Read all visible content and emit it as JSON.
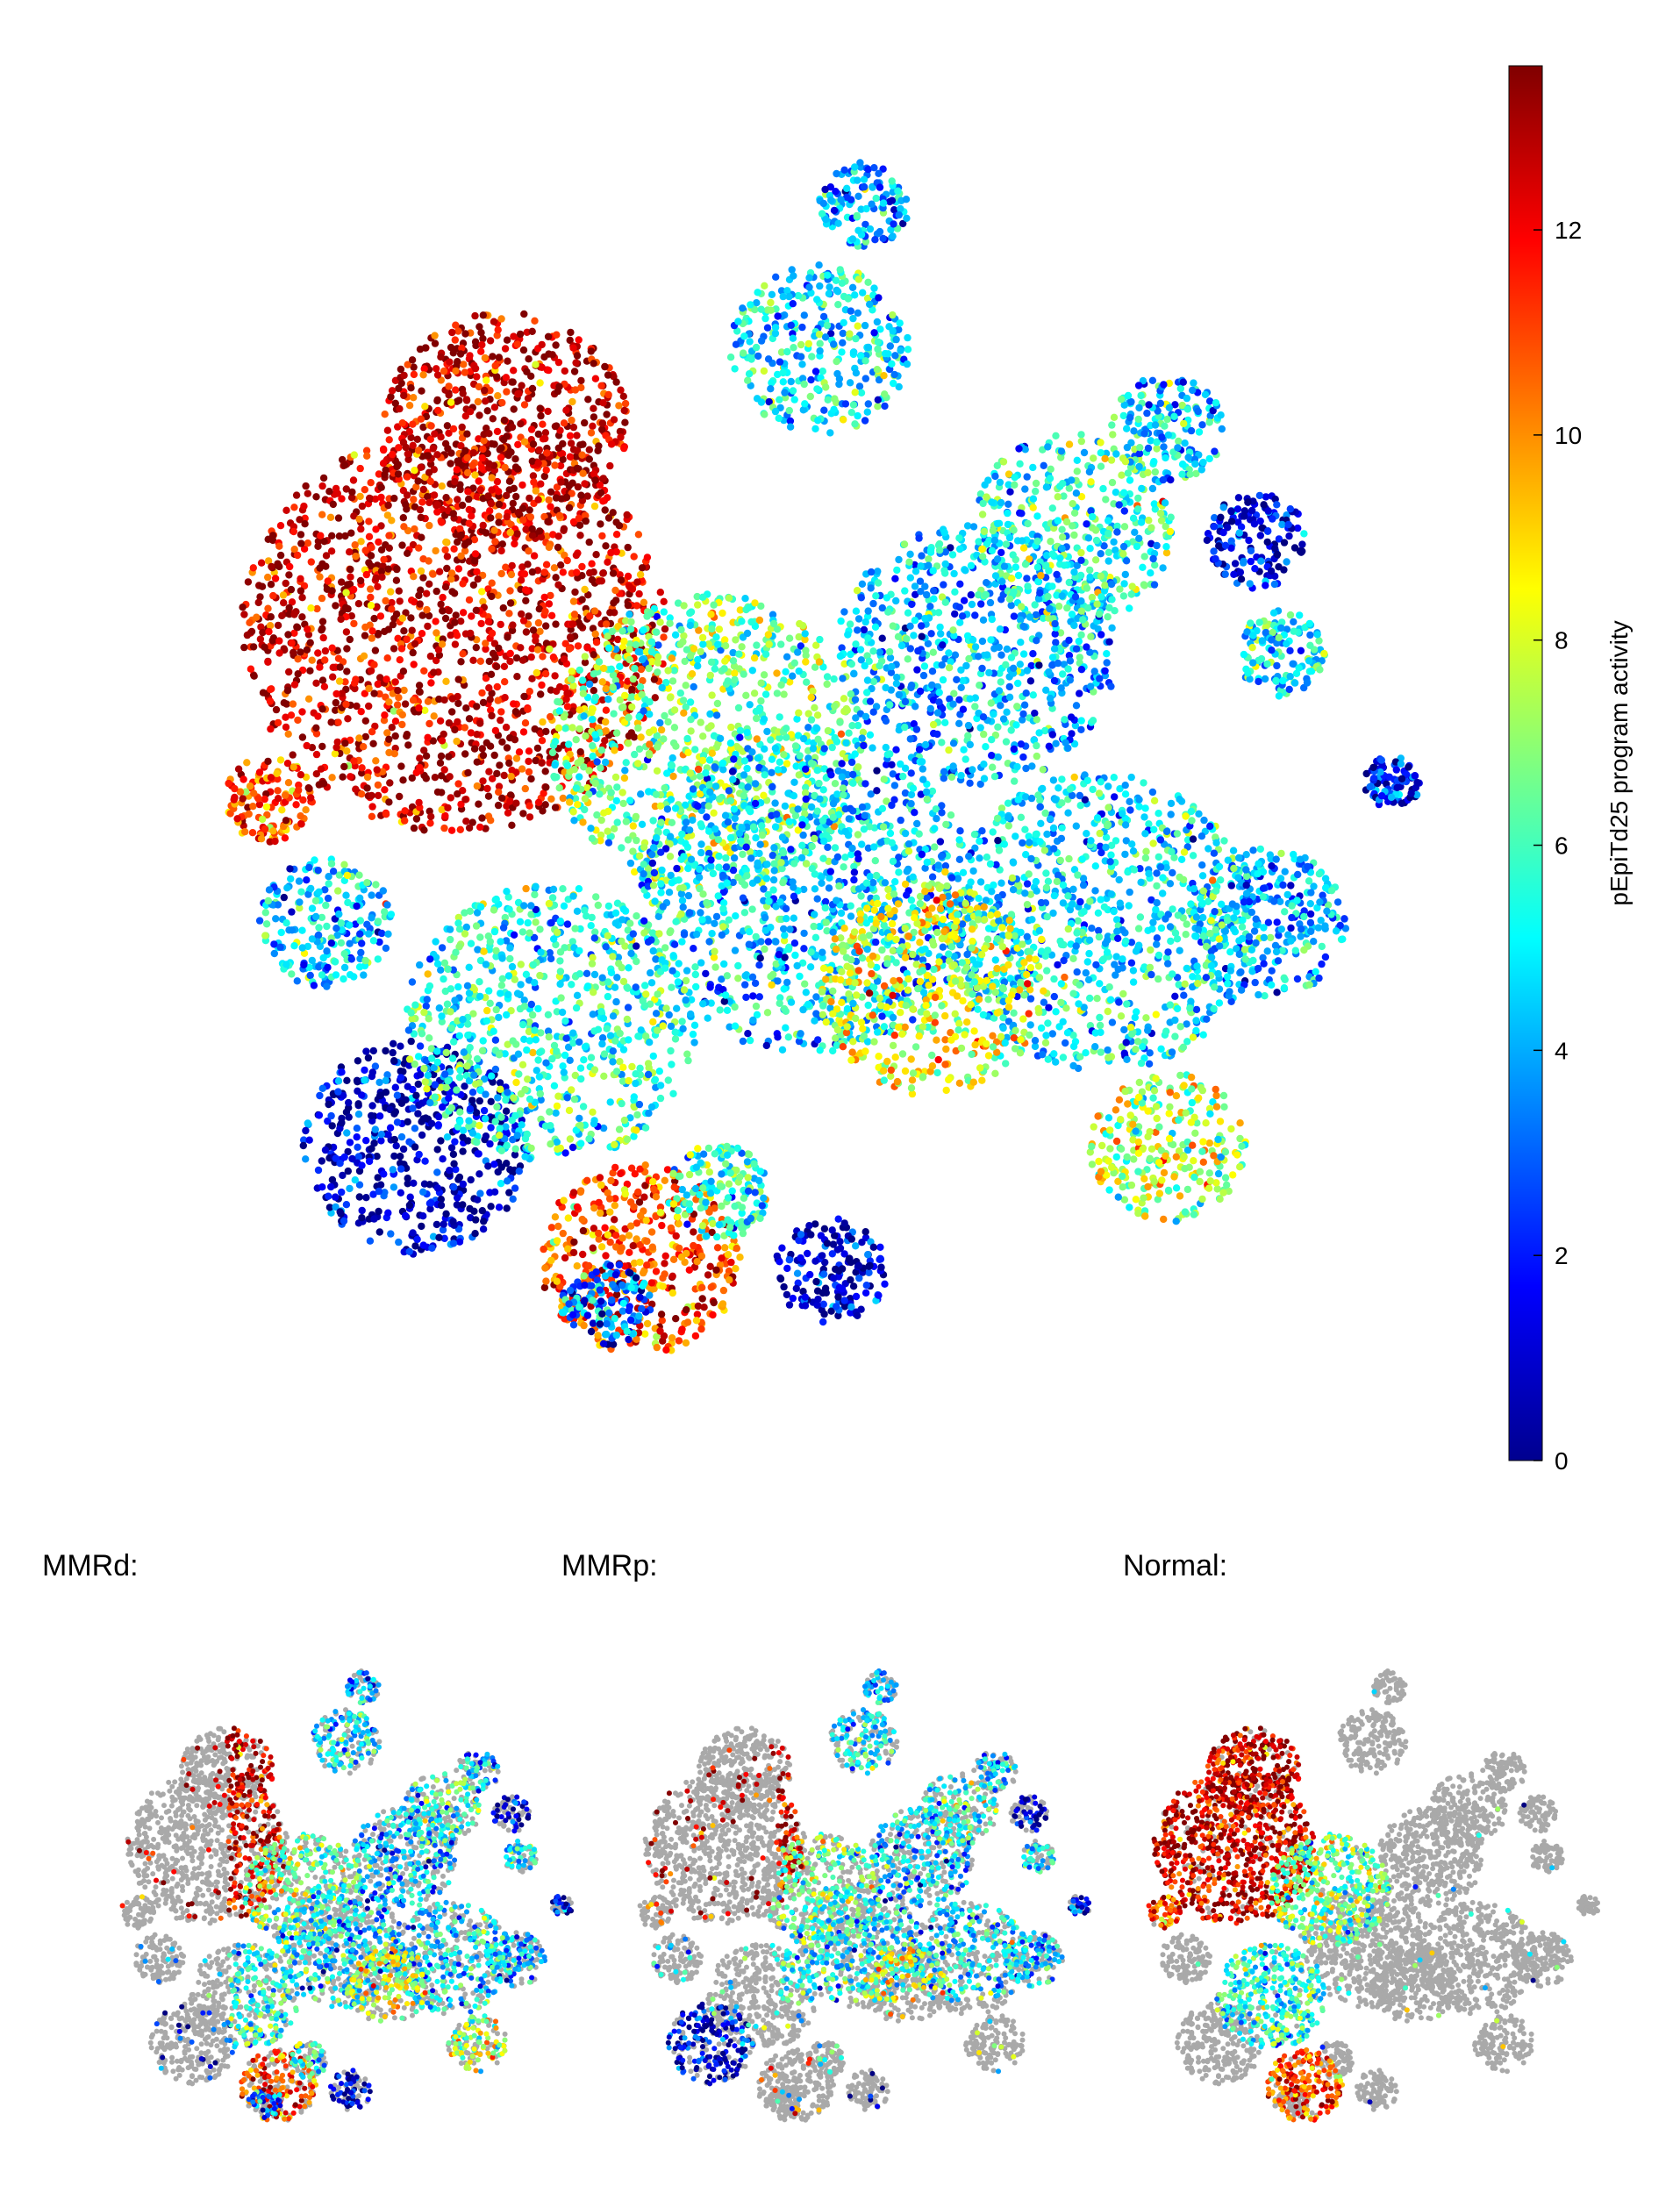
{
  "chart_data": {
    "type": "scatter",
    "description_kind": "t-SNE embedding of cells colored by program activity",
    "colorbar": {
      "label": "pEpiTd25 program activity",
      "min": 0,
      "max": 13.6,
      "ticks": [
        0,
        2,
        4,
        6,
        8,
        10,
        12
      ],
      "tick_labels": [
        "0",
        "2",
        "4",
        "6",
        "8",
        "10",
        "12"
      ],
      "colormap": "jet"
    },
    "clusters": [
      {
        "cx": -0.46,
        "cy": 0.58,
        "r": 0.22,
        "activity": 12.8
      },
      {
        "cx": -0.55,
        "cy": 0.22,
        "r": 0.38,
        "activity": 12.5
      },
      {
        "cx": -0.88,
        "cy": -0.08,
        "r": 0.08,
        "activity": 11.0
      },
      {
        "cx": -0.78,
        "cy": -0.3,
        "r": 0.12,
        "activity": 4.5
      },
      {
        "cx": -0.62,
        "cy": -0.7,
        "r": 0.2,
        "activity": 1.0
      },
      {
        "cx": -0.38,
        "cy": -0.48,
        "r": 0.26,
        "activity": 5.5
      },
      {
        "cx": -0.22,
        "cy": -0.9,
        "r": 0.18,
        "activity": 11.0
      },
      {
        "cx": -0.1,
        "cy": 0.02,
        "r": 0.28,
        "activity": 6.5
      },
      {
        "cx": 0.08,
        "cy": -0.25,
        "r": 0.3,
        "activity": 4.5
      },
      {
        "cx": 0.1,
        "cy": 0.72,
        "r": 0.16,
        "activity": 4.8
      },
      {
        "cx": 0.18,
        "cy": 0.98,
        "r": 0.08,
        "activity": 3.5
      },
      {
        "cx": 0.38,
        "cy": 0.18,
        "r": 0.25,
        "activity": 4.2
      },
      {
        "cx": 0.55,
        "cy": 0.4,
        "r": 0.18,
        "activity": 5.5
      },
      {
        "cx": 0.72,
        "cy": 0.58,
        "r": 0.1,
        "activity": 4.5
      },
      {
        "cx": 0.88,
        "cy": 0.38,
        "r": 0.09,
        "activity": 1.5
      },
      {
        "cx": 0.92,
        "cy": 0.18,
        "r": 0.08,
        "activity": 5.0
      },
      {
        "cx": 0.9,
        "cy": -0.3,
        "r": 0.14,
        "activity": 4.0
      },
      {
        "cx": 0.6,
        "cy": -0.3,
        "r": 0.28,
        "activity": 4.8
      },
      {
        "cx": 0.3,
        "cy": -0.42,
        "r": 0.2,
        "activity": 8.0
      },
      {
        "cx": 0.72,
        "cy": -0.7,
        "r": 0.14,
        "activity": 7.5
      },
      {
        "cx": 0.12,
        "cy": -0.92,
        "r": 0.1,
        "activity": 1.0
      },
      {
        "cx": -0.08,
        "cy": -0.78,
        "r": 0.09,
        "activity": 5.5
      },
      {
        "cx": -0.28,
        "cy": -0.98,
        "r": 0.08,
        "activity": 3.0
      },
      {
        "cx": 1.12,
        "cy": -0.05,
        "r": 0.05,
        "activity": 2.0
      }
    ],
    "panels": [
      {
        "title": "MMRd:"
      },
      {
        "title": "MMRp:"
      },
      {
        "title": "Normal:"
      }
    ]
  }
}
